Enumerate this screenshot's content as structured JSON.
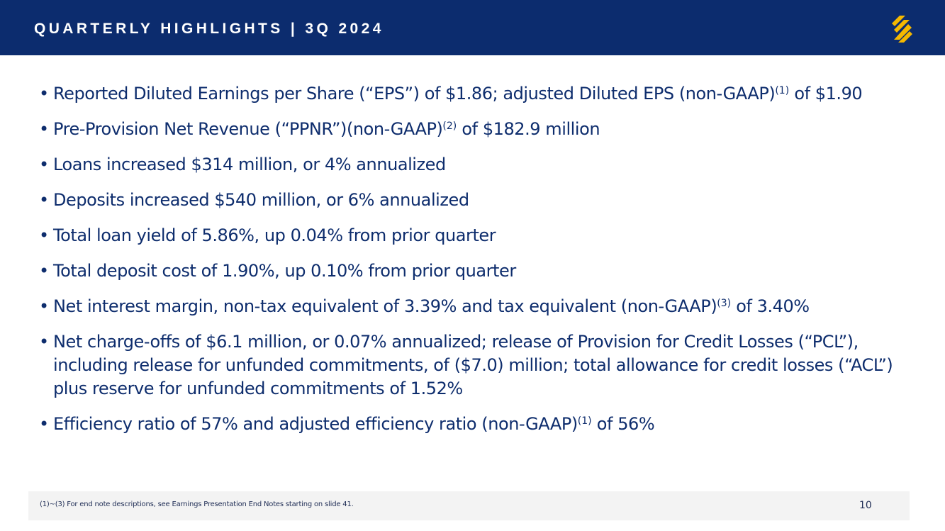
{
  "header": {
    "title": "QUARTERLY HIGHLIGHTS | 3Q 2024",
    "logo_icon": "ss-logo-icon",
    "background_color": "#0c2c6e",
    "logo_color": "#f5b800"
  },
  "bullets": [
    {
      "text": "Reported Diluted Earnings per Share (“EPS”) of $1.86; adjusted Diluted EPS (non-GAAP)",
      "sup": "(1)",
      "after": " of $1.90"
    },
    {
      "text": "Pre-Provision Net Revenue (“PPNR”)(non-GAAP)",
      "sup": "(2)",
      "after": " of $182.9 million"
    },
    {
      "text": "Loans increased $314 million, or 4% annualized",
      "sup": "",
      "after": ""
    },
    {
      "text": "Deposits increased $540 million, or 6% annualized",
      "sup": "",
      "after": ""
    },
    {
      "text": "Total loan yield of 5.86%, up 0.04% from prior quarter",
      "sup": "",
      "after": ""
    },
    {
      "text": "Total deposit cost of 1.90%, up 0.10% from prior quarter",
      "sup": "",
      "after": ""
    },
    {
      "text": "Net interest margin, non-tax equivalent of 3.39% and tax equivalent (non-GAAP)",
      "sup": "(3)",
      "after": " of 3.40%"
    },
    {
      "text": "Net charge-offs of $6.1 million, or 0.07% annualized; release of Provision for Credit Losses (“PCL”), including release for unfunded commitments, of ($7.0) million; total allowance for credit losses (“ACL”) plus reserve for unfunded commitments of 1.52%",
      "sup": "",
      "after": ""
    },
    {
      "text": "Efficiency ratio of 57% and adjusted efficiency ratio (non-GAAP)",
      "sup": "(1)",
      "after": " of 56%"
    }
  ],
  "footer": {
    "note": "(1)~(3)  For end note descriptions, see Earnings Presentation End Notes starting on slide 41.",
    "page_number": "10"
  }
}
